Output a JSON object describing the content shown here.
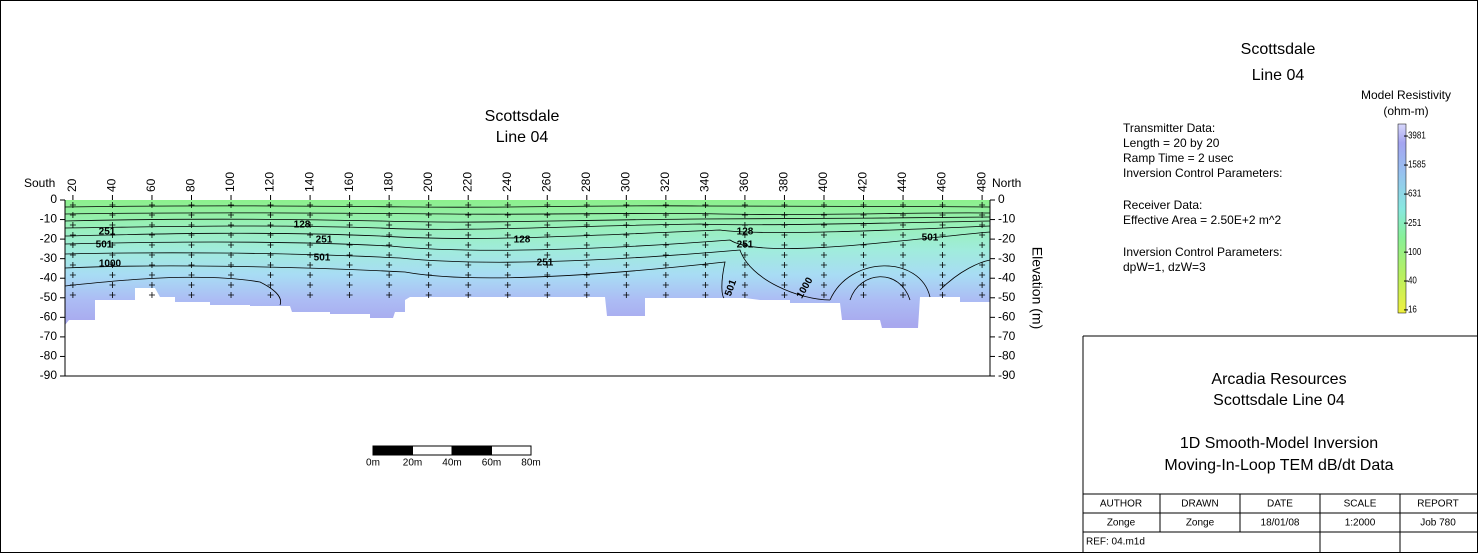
{
  "chart_data": {
    "type": "section",
    "title": "Scottsdale",
    "subtitle": "Line 04",
    "x_left_label": "South",
    "x_right_label": "North",
    "y_label": "Elevation (m)",
    "xlim": [
      16,
      484
    ],
    "xticks": [
      20,
      40,
      60,
      80,
      100,
      120,
      140,
      160,
      180,
      200,
      220,
      240,
      260,
      280,
      300,
      320,
      340,
      360,
      380,
      400,
      420,
      440,
      460,
      480
    ],
    "ylim": [
      -90,
      0
    ],
    "yticks": [
      0,
      -10,
      -20,
      -30,
      -40,
      -50,
      -60,
      -70,
      -80,
      -90
    ],
    "contour_labels": [
      251,
      501,
      1000,
      128,
      251,
      501,
      128,
      251,
      128,
      251,
      501,
      1000,
      501
    ],
    "colorbar": {
      "title": "Model Resistivity",
      "unit": "(ohm-m)",
      "log": true,
      "clim": [
        14.5,
        5830
      ],
      "ticks": [
        16,
        40,
        100,
        251,
        631,
        1585,
        3981
      ]
    },
    "scale_bar": [
      "0m",
      "20m",
      "40m",
      "60m",
      "80m"
    ]
  },
  "sheet_title": [
    "Scottsdale",
    "Line 04"
  ],
  "notes": [
    "Transmitter Data:",
    "Length = 20 by 20",
    "Ramp Time = 2 usec",
    "Inversion Control Parameters:",
    "Receiver Data:",
    "Effective Area = 2.50E+2 m^2",
    "Inversion Control Parameters:",
    "dpW=1, dzW=3"
  ],
  "title_block": {
    "company": "Arcadia Resources",
    "project": "Scottsdale Line 04",
    "method": "1D Smooth-Model Inversion",
    "data": "Moving-In-Loop TEM dB/dt Data",
    "headers": [
      "AUTHOR",
      "DRAWN",
      "DATE",
      "SCALE",
      "REPORT"
    ],
    "row": [
      "Zonge",
      "Zonge",
      "18/01/08",
      "1:2000",
      "Job 780"
    ],
    "ref": "REF:   04.m1d"
  }
}
